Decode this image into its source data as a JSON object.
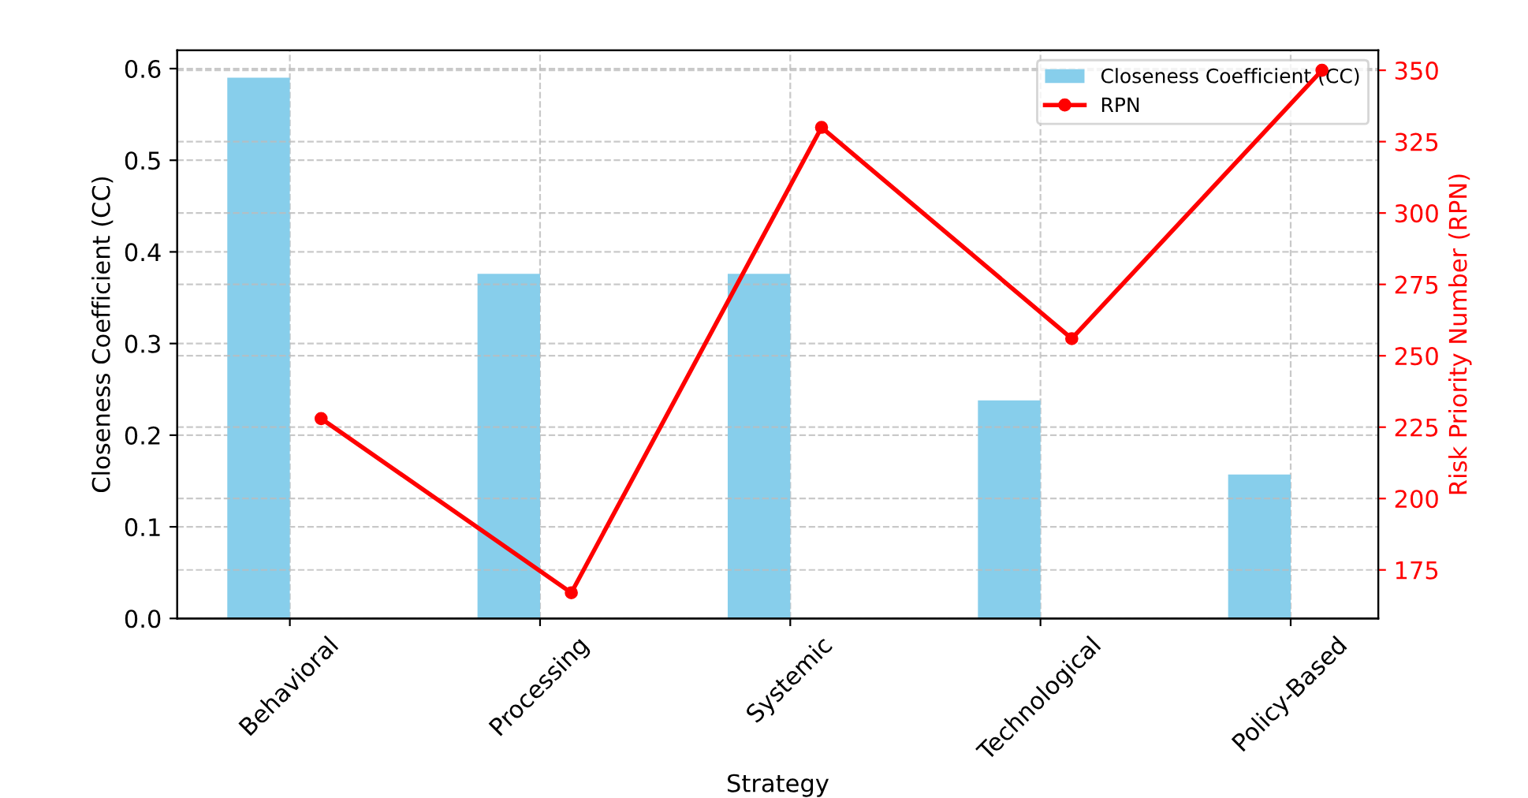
{
  "chart_data": {
    "type": "bar",
    "xlabel": "Strategy",
    "ylabel": "Closeness Coefficient (CC)",
    "y2label": "Risk Priority Number (RPN)",
    "categories": [
      "Behavioral",
      "Processing",
      "Systemic",
      "Technological",
      "Policy-Based"
    ],
    "series": [
      {
        "name": "Closeness Coefficient (CC)",
        "color": "#87ceeb",
        "values": [
          0.59,
          0.376,
          0.376,
          0.238,
          0.157
        ]
      },
      {
        "name": "RPN",
        "type": "line",
        "axis": "y2",
        "color": "#ff0000",
        "marker": "circle",
        "line_style": "solid",
        "values": [
          228,
          167,
          330,
          256,
          350
        ]
      }
    ],
    "ylim": [
      0,
      0.62
    ],
    "yticks": [
      {
        "value": 0,
        "label": "0.0"
      },
      0.1,
      0.2,
      0.3,
      0.4,
      0.5,
      0.6
    ],
    "y2lim": [
      158,
      357
    ],
    "y2ticks": [
      175,
      200,
      225,
      250,
      275,
      300,
      325,
      350
    ],
    "grid": true,
    "legend": "top right"
  }
}
